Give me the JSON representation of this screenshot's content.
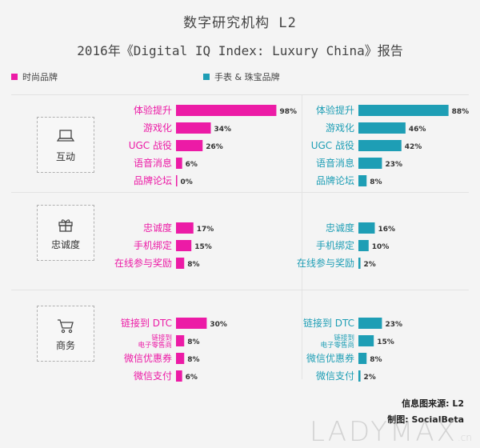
{
  "title": "数字研究机构 L2",
  "subtitle": "2016年《Digital IQ Index: Luxury China》报告",
  "legend": [
    {
      "label": "时尚品牌",
      "color": "#ec1ba6"
    },
    {
      "label": "手表 & 珠宝品牌",
      "color": "#1e9eb5"
    }
  ],
  "groups": [
    {
      "label": "互动",
      "icon": "laptop-icon"
    },
    {
      "label": "忠诚度",
      "icon": "gift-icon"
    },
    {
      "label": "商务",
      "icon": "shopping-cart-icon"
    }
  ],
  "source": "信息图来源: L2",
  "made_by": "制图: SocialBeta",
  "watermark": {
    "main": "LADYMAX",
    "suffix": ".cn"
  },
  "chart_data": {
    "type": "bar",
    "orientation": "horizontal",
    "unit": "%",
    "xlim": [
      0,
      100
    ],
    "series": [
      {
        "name": "时尚品牌",
        "color": "#ec1ba6",
        "groups": [
          {
            "group": "互动",
            "categories": [
              "体验提升",
              "游戏化",
              "UGC 战役",
              "语音消息",
              "品牌论坛"
            ],
            "values": [
              98,
              34,
              26,
              6,
              0
            ]
          },
          {
            "group": "忠诚度",
            "categories": [
              "忠诚度",
              "手机绑定",
              "在线参与奖励"
            ],
            "values": [
              17,
              15,
              8
            ]
          },
          {
            "group": "商务",
            "categories": [
              "链接到 DTC",
              "链接到\n电子零售商",
              "微信优惠券",
              "微信支付"
            ],
            "values": [
              30,
              8,
              8,
              6
            ]
          }
        ]
      },
      {
        "name": "手表 & 珠宝品牌",
        "color": "#1e9eb5",
        "groups": [
          {
            "group": "互动",
            "categories": [
              "体验提升",
              "游戏化",
              "UGC 战役",
              "语音消息",
              "品牌论坛"
            ],
            "values": [
              88,
              46,
              42,
              23,
              8
            ]
          },
          {
            "group": "忠诚度",
            "categories": [
              "忠诚度",
              "手机绑定",
              "在线参与奖励"
            ],
            "values": [
              16,
              10,
              2
            ]
          },
          {
            "group": "商务",
            "categories": [
              "链接到 DTC",
              "链接到\n电子零售商",
              "微信优惠券",
              "微信支付"
            ],
            "values": [
              23,
              15,
              8,
              2
            ]
          }
        ]
      }
    ]
  }
}
